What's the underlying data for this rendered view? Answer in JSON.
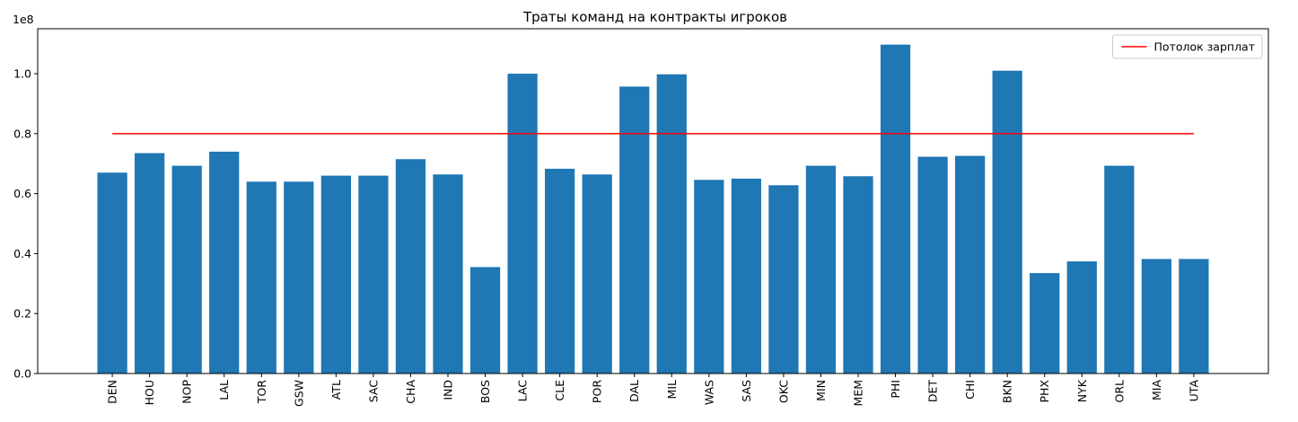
{
  "chart_data": {
    "type": "bar",
    "title": "Траты команд на контракты игроков",
    "xlabel": "",
    "ylabel": "",
    "y_scale_label": "1e8",
    "y_tick_values": [
      0,
      20000000,
      40000000,
      60000000,
      80000000,
      100000000
    ],
    "y_tick_labels": [
      "0.0",
      "0.2",
      "0.4",
      "0.6",
      "0.8",
      "1.0"
    ],
    "ylim": [
      0,
      115000000
    ],
    "categories": [
      "DEN",
      "HOU",
      "NOP",
      "LAL",
      "TOR",
      "GSW",
      "ATL",
      "SAC",
      "CHA",
      "IND",
      "BOS",
      "LAC",
      "CLE",
      "POR",
      "DAL",
      "MIL",
      "WAS",
      "SAS",
      "OKC",
      "MIN",
      "MEM",
      "PHI",
      "DET",
      "CHI",
      "BKN",
      "PHX",
      "NYK",
      "ORL",
      "MIA",
      "UTA"
    ],
    "values": [
      67000000,
      73500000,
      69300000,
      74000000,
      64000000,
      64000000,
      66000000,
      66000000,
      71500000,
      66400000,
      35500000,
      100000000,
      68300000,
      66400000,
      95700000,
      99800000,
      64600000,
      65000000,
      62800000,
      69300000,
      65800000,
      109700000,
      72300000,
      72600000,
      101000000,
      33500000,
      37400000,
      69300000,
      38200000,
      38200000
    ],
    "bar_color": "#1f77b4",
    "salary_cap": {
      "label": "Потолок зарплат",
      "value": 80000000,
      "color": "#ff0000"
    },
    "legend_position": "top-right",
    "grid": false
  }
}
